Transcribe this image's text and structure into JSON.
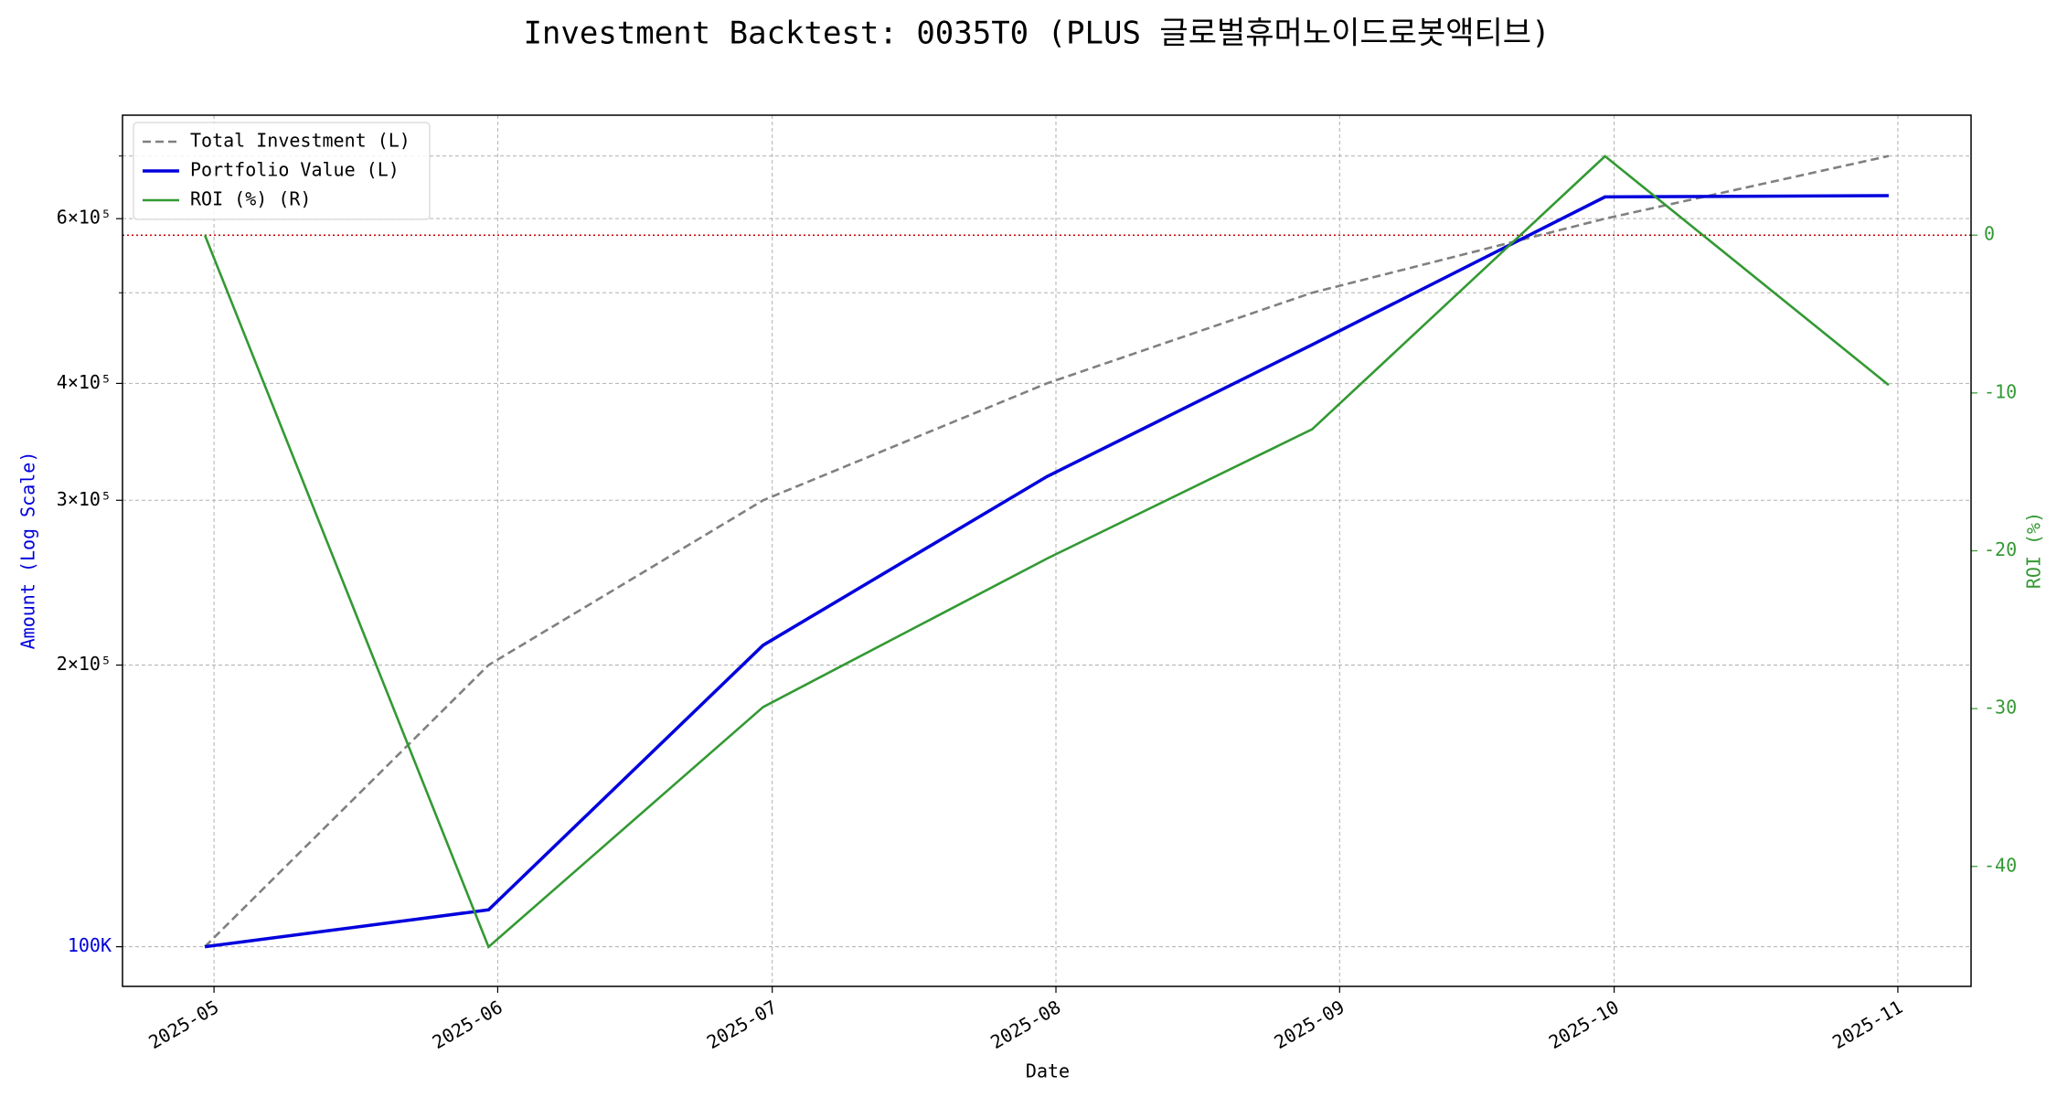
{
  "chart_data": {
    "type": "line",
    "title": "Investment Backtest: 0035T0 (PLUS 글로벌휴머노이드로봇액티브)",
    "x_label": "Date",
    "y_label": "Amount (Log Scale)",
    "y2_label": "ROI (%)",
    "x": [
      "2025-04-30",
      "2025-05-31",
      "2025-06-30",
      "2025-07-31",
      "2025-08-29",
      "2025-09-30",
      "2025-10-31"
    ],
    "xlim": [
      "2025-04-21",
      "2025-11-09"
    ],
    "xticks": [
      "2025-05",
      "2025-06",
      "2025-07",
      "2025-08",
      "2025-09",
      "2025-10",
      "2025-11"
    ],
    "y_scale": "log",
    "ylim": [
      90700,
      774000
    ],
    "yticks": [
      {
        "value": 100000,
        "label": "100K"
      },
      {
        "value": 200000,
        "label": "2×10⁵"
      },
      {
        "value": 300000,
        "label": "3×10⁵"
      },
      {
        "value": 400000,
        "label": "4×10⁵"
      },
      {
        "value": 600000,
        "label": "6×10⁵"
      }
    ],
    "yminorticks": [
      500000,
      700000
    ],
    "y2lim": [
      -47.6,
      7.6
    ],
    "y2ticks": [
      -40,
      -30,
      -20,
      -10,
      0
    ],
    "grid": true,
    "legend": "upper-left",
    "hline": {
      "value": 0,
      "axis": "y2",
      "color": "#cc0000"
    },
    "series": [
      {
        "name": "Total Investment (L)",
        "color": "#808080",
        "dash": true,
        "axis": "y",
        "values": [
          100000,
          200000,
          300000,
          400000,
          500000,
          600000,
          700000
        ]
      },
      {
        "name": "Portfolio Value (L)",
        "color": "#0000dd",
        "axis": "y",
        "values": [
          100000,
          109500,
          210000,
          318000,
          440000,
          633000,
          635000
        ]
      },
      {
        "name": "ROI (%) (R)",
        "color": "#339933",
        "axis": "y2",
        "values": [
          0,
          -45.1,
          -29.9,
          -20.5,
          -12.3,
          5.0,
          -9.5
        ]
      }
    ]
  }
}
